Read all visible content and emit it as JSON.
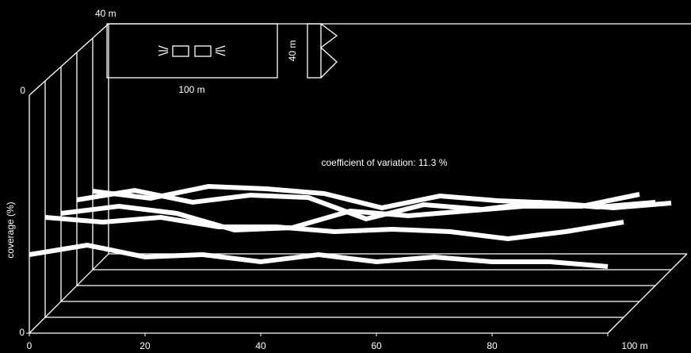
{
  "chart_data": {
    "type": "waterfall-line",
    "y_label": "coverage (%)",
    "annotation": "coefficient of variation: 11.3 %",
    "depth_label": "0",
    "inset": {
      "top_label": "40 m",
      "width_label": "100 m",
      "height_label": "40 m"
    },
    "x": [
      0,
      10,
      20,
      30,
      40,
      50,
      60,
      70,
      80,
      90,
      100
    ],
    "xlim": [
      0,
      100
    ],
    "xticks": [
      0,
      20,
      40,
      60,
      80,
      {
        "value": 100,
        "label": "100 m"
      }
    ],
    "ylim": [
      0,
      100
    ],
    "yticks": [
      0
    ],
    "color": "#ffffff",
    "series": [
      {
        "values": [
          33,
          37,
          32,
          33,
          30,
          33,
          30,
          32,
          30,
          30,
          28
        ]
      },
      {
        "values": [
          42,
          40,
          42,
          38,
          38,
          36,
          37,
          36,
          33,
          36,
          40
        ]
      },
      {
        "values": [
          37,
          40,
          37,
          30,
          31,
          38,
          36,
          38,
          40,
          40,
          45
        ]
      },
      {
        "values": [
          36,
          40,
          35,
          38,
          37,
          28,
          34,
          32,
          35,
          33,
          35
        ]
      },
      {
        "values": [
          33,
          30,
          35,
          34,
          32,
          26,
          31,
          29,
          28,
          26,
          28
        ]
      }
    ]
  }
}
